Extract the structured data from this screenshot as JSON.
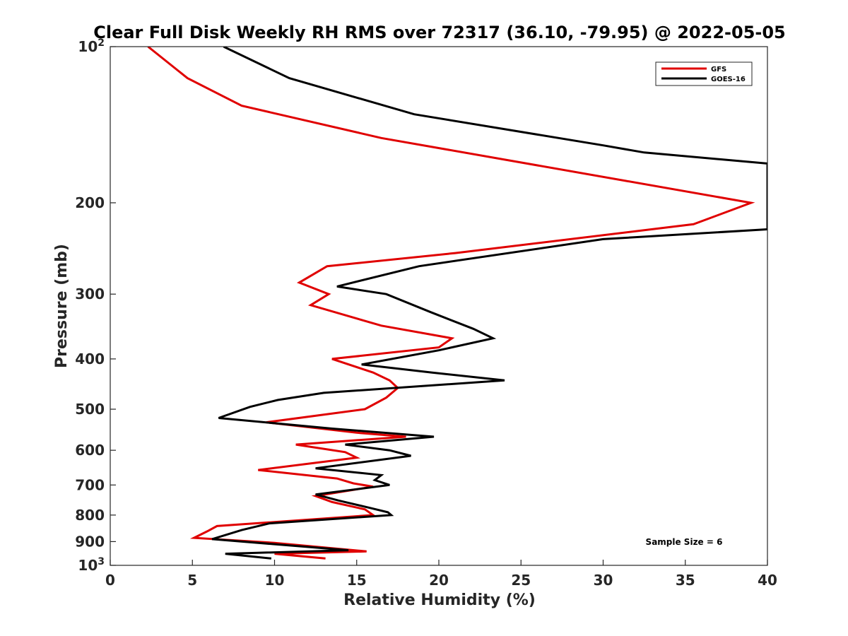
{
  "chart_data": {
    "type": "line",
    "title": "Clear Full Disk Weekly RH RMS over 72317 (36.10, -79.95) @ 2022-05-05",
    "xlabel": "Relative Humidity (%)",
    "ylabel": "Pressure (mb)",
    "xlim": [
      0,
      40
    ],
    "ylim": [
      100,
      1000
    ],
    "y_scale": "log",
    "y_reversed": true,
    "grid": false,
    "legend_placement": "top-right",
    "xticks": [
      "0",
      "5",
      "10",
      "15",
      "20",
      "25",
      "30",
      "35",
      "40"
    ],
    "yticks": [
      {
        "value": 100,
        "base": "10",
        "exp": "2"
      },
      {
        "value": 200,
        "label": "200"
      },
      {
        "value": 300,
        "label": "300"
      },
      {
        "value": 400,
        "label": "400"
      },
      {
        "value": 500,
        "label": "500"
      },
      {
        "value": 600,
        "label": "600"
      },
      {
        "value": 700,
        "label": "700"
      },
      {
        "value": 800,
        "label": "800"
      },
      {
        "value": 900,
        "label": "900"
      },
      {
        "value": 1000,
        "base": "10",
        "exp": "3"
      }
    ],
    "annotation": "Sample Size = 6",
    "series": [
      {
        "name": "GFS",
        "color": "#e00000",
        "points": [
          [
            2.3,
            100
          ],
          [
            4.7,
            115
          ],
          [
            8.0,
            130
          ],
          [
            16.5,
            150
          ],
          [
            39.0,
            200
          ],
          [
            35.5,
            220
          ],
          [
            21.0,
            250
          ],
          [
            13.2,
            265
          ],
          [
            11.5,
            285
          ],
          [
            13.3,
            300
          ],
          [
            12.2,
            315
          ],
          [
            16.5,
            345
          ],
          [
            20.8,
            365
          ],
          [
            20.0,
            380
          ],
          [
            13.5,
            400
          ],
          [
            16.0,
            425
          ],
          [
            17.0,
            440
          ],
          [
            17.5,
            455
          ],
          [
            16.8,
            475
          ],
          [
            15.5,
            500
          ],
          [
            9.5,
            530
          ],
          [
            15.0,
            555
          ],
          [
            18.0,
            565
          ],
          [
            11.3,
            585
          ],
          [
            14.3,
            605
          ],
          [
            15.0,
            620
          ],
          [
            9.0,
            655
          ],
          [
            13.8,
            680
          ],
          [
            14.8,
            695
          ],
          [
            16.0,
            705
          ],
          [
            12.5,
            735
          ],
          [
            13.5,
            755
          ],
          [
            15.5,
            780
          ],
          [
            16.0,
            800
          ],
          [
            6.5,
            840
          ],
          [
            5.9,
            860
          ],
          [
            5.1,
            885
          ],
          [
            10.0,
            905
          ],
          [
            15.6,
            940
          ],
          [
            10.0,
            950
          ],
          [
            13.1,
            970
          ]
        ]
      },
      {
        "name": "GOES-16",
        "color": "#000000",
        "points": [
          [
            6.9,
            100
          ],
          [
            10.9,
            115
          ],
          [
            18.5,
            135
          ],
          [
            30.0,
            155
          ],
          [
            32.5,
            160
          ],
          [
            40.0,
            168
          ],
          [
            40.0,
            225
          ],
          [
            30.0,
            235
          ],
          [
            18.8,
            265
          ],
          [
            13.8,
            290
          ],
          [
            16.8,
            300
          ],
          [
            19.5,
            325
          ],
          [
            22.1,
            350
          ],
          [
            23.3,
            365
          ],
          [
            20.0,
            385
          ],
          [
            15.3,
            410
          ],
          [
            19.6,
            425
          ],
          [
            24.0,
            440
          ],
          [
            13.0,
            465
          ],
          [
            10.2,
            480
          ],
          [
            8.5,
            495
          ],
          [
            6.6,
            520
          ],
          [
            13.5,
            545
          ],
          [
            19.7,
            565
          ],
          [
            14.3,
            585
          ],
          [
            17.0,
            600
          ],
          [
            18.3,
            615
          ],
          [
            12.5,
            650
          ],
          [
            16.5,
            670
          ],
          [
            16.1,
            685
          ],
          [
            17.0,
            700
          ],
          [
            12.5,
            730
          ],
          [
            13.9,
            750
          ],
          [
            15.8,
            775
          ],
          [
            16.9,
            790
          ],
          [
            17.1,
            800
          ],
          [
            9.7,
            830
          ],
          [
            8.0,
            855
          ],
          [
            6.2,
            890
          ],
          [
            14.5,
            935
          ],
          [
            7.0,
            950
          ],
          [
            9.8,
            970
          ]
        ]
      }
    ]
  }
}
